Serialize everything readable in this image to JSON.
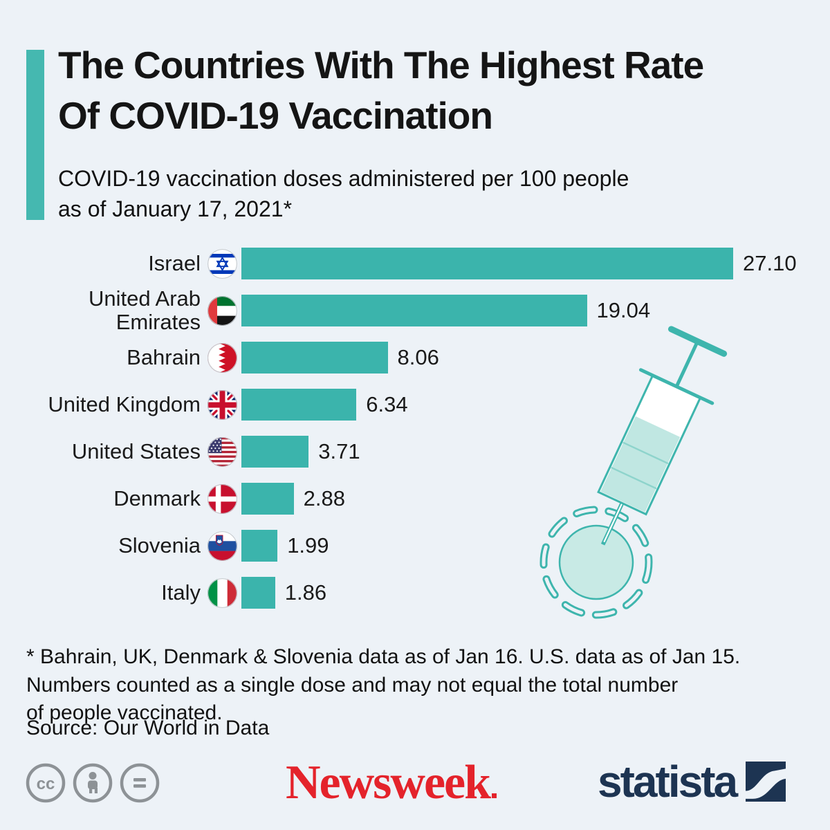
{
  "colors": {
    "background": "#EDF2F7",
    "accent": "#45B8B0",
    "bar": "#3BB4AC",
    "title_text": "#151515",
    "newsweek_red": "#E4232B",
    "statista_navy": "#1D3452",
    "license_gray": "#8D9296",
    "illustration_stroke": "#3EB5AD",
    "illustration_fill": "#C8EAE5"
  },
  "header": {
    "title_lines": [
      "The Countries With The Highest Rate",
      "Of COVID-19 Vaccination"
    ],
    "subtitle_lines": [
      "COVID-19 vaccination doses administered per 100 people",
      "as of January 17, 2021*"
    ]
  },
  "chart_data": {
    "type": "bar",
    "orientation": "horizontal",
    "title": "COVID-19 vaccination doses administered per 100 people as of January 17, 2021*",
    "xlabel": "",
    "ylabel": "",
    "xlim": [
      0,
      27.1
    ],
    "grid": false,
    "legend": null,
    "bar_color": "#3BB4AC",
    "categories": [
      "Israel",
      "United Arab Emirates",
      "Bahrain",
      "United Kingdom",
      "United States",
      "Denmark",
      "Slovenia",
      "Italy"
    ],
    "values": [
      27.1,
      19.04,
      8.06,
      6.34,
      3.71,
      2.88,
      1.99,
      1.86
    ],
    "value_labels": [
      "27.10",
      "19.04",
      "8.06",
      "6.34",
      "3.71",
      "2.88",
      "1.99",
      "1.86"
    ],
    "flag_icons": [
      "israel-flag-icon",
      "united-arab-emirates-flag-icon",
      "bahrain-flag-icon",
      "united-kingdom-flag-icon",
      "united-states-flag-icon",
      "denmark-flag-icon",
      "slovenia-flag-icon",
      "italy-flag-icon"
    ]
  },
  "footnote_lines": [
    "* Bahrain, UK, Denmark & Slovenia data as of Jan 16. U.S. data as of Jan 15.",
    "Numbers counted as a single dose and may not equal the total number",
    "of people vaccinated."
  ],
  "source": "Source: Our World in Data",
  "footer": {
    "license_icons": [
      "cc-icon",
      "attribution-person-icon",
      "equals-icon"
    ],
    "newsweek_logo_text": "Newsweek",
    "statista_logo_text": "statista"
  }
}
